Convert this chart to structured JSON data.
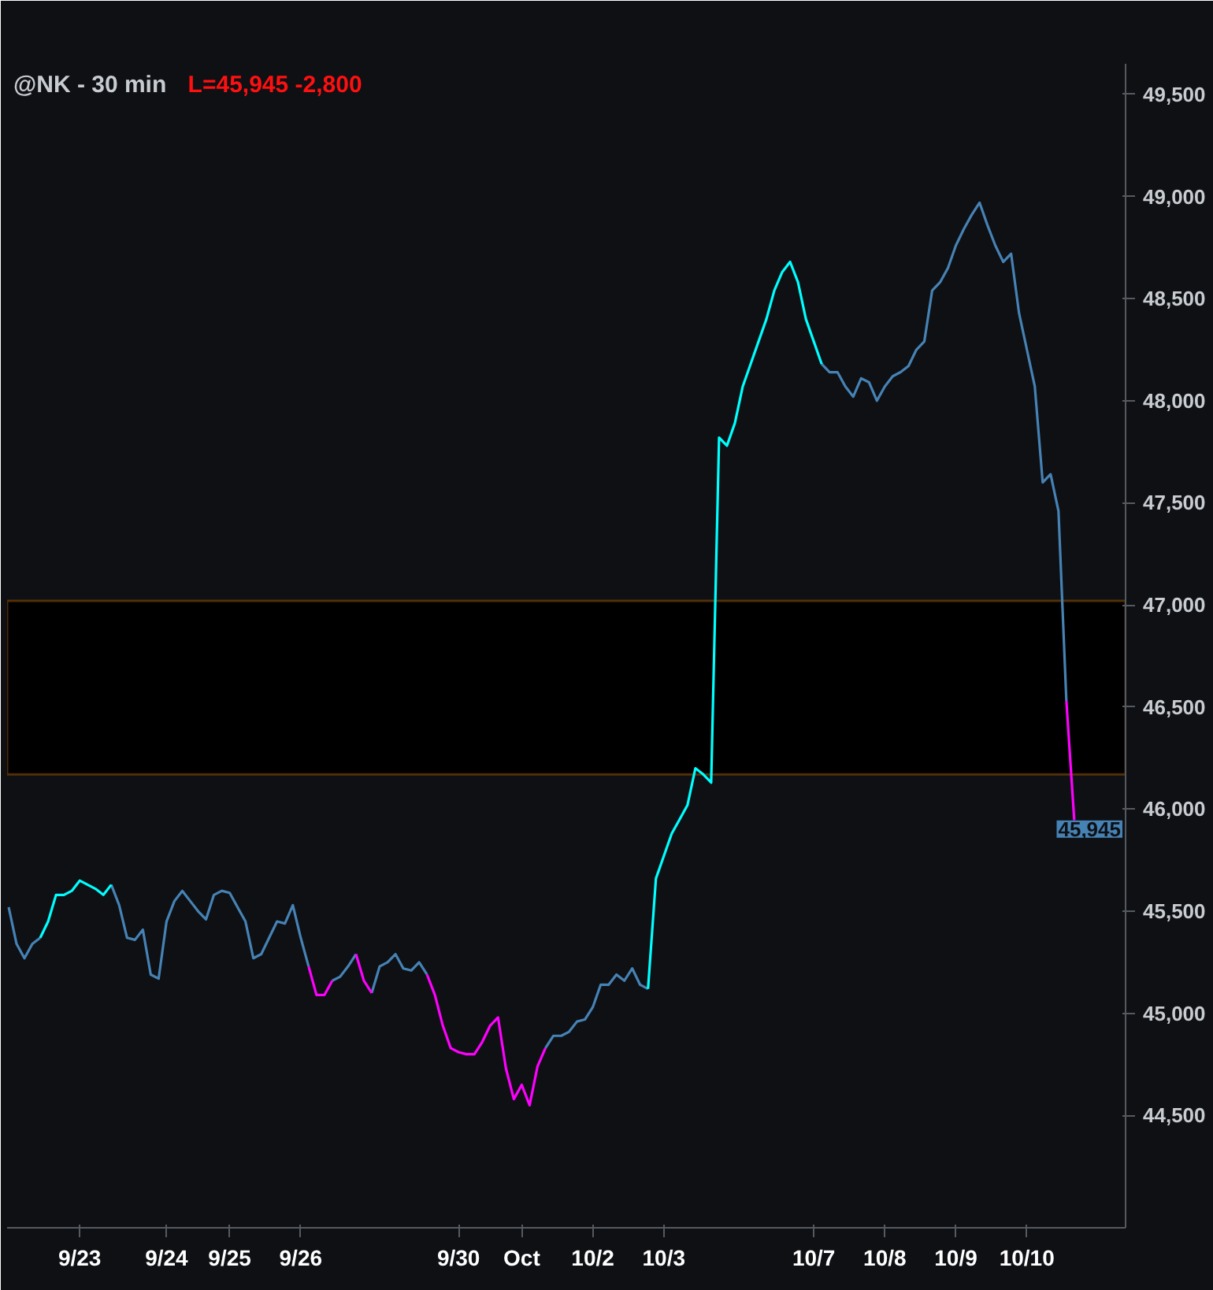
{
  "chart_data": {
    "type": "line",
    "title": "@NK - 30 min",
    "subtitle": "L=45,945  -2,800",
    "categories": [
      null,
      null,
      null,
      null,
      null,
      null,
      null,
      null,
      null,
      "9/23",
      null,
      null,
      null,
      null,
      null,
      null,
      null,
      null,
      null,
      null,
      "9/24",
      null,
      null,
      null,
      null,
      null,
      null,
      null,
      "9/25",
      null,
      null,
      null,
      null,
      null,
      null,
      null,
      null,
      "9/26",
      null,
      null,
      null,
      null,
      null,
      null,
      null,
      null,
      null,
      null,
      null,
      null,
      null,
      null,
      null,
      null,
      null,
      null,
      null,
      "9/30",
      null,
      null,
      null,
      null,
      null,
      null,
      null,
      "Oct",
      null,
      null,
      null,
      null,
      null,
      null,
      null,
      null,
      "10/2",
      null,
      null,
      null,
      null,
      null,
      null,
      null,
      null,
      "10/3",
      null,
      null,
      null,
      null,
      null,
      null,
      null,
      null,
      null,
      null,
      null,
      null,
      null,
      null,
      null,
      null,
      null,
      null,
      "10/7",
      null,
      null,
      null,
      null,
      null,
      null,
      null,
      null,
      "10/8",
      null,
      null,
      null,
      null,
      null,
      null,
      null,
      null,
      "10/9",
      null,
      null,
      null,
      null,
      null,
      null,
      null,
      null,
      "10/10",
      null,
      null,
      null,
      null,
      null,
      null
    ],
    "series": [
      {
        "color": "#4682b4",
        "values": [
          45520,
          45340,
          45270,
          45340,
          45370,
          null,
          null,
          null,
          null,
          null,
          null,
          null,
          null,
          45630,
          45530,
          45370,
          45360,
          45410,
          45190,
          45170,
          45450,
          45550,
          45600,
          45550,
          45500,
          45460,
          45580,
          45600,
          45590,
          45520,
          45450,
          45270,
          45290,
          45370,
          45450,
          45440,
          45530,
          45370,
          45230,
          null,
          null,
          45160,
          45180,
          45230,
          45290,
          null,
          45100,
          45230,
          45250,
          45290,
          45220,
          45210,
          45250,
          45190,
          null,
          null,
          null,
          null,
          null,
          null,
          null,
          null,
          null,
          null,
          null,
          null,
          null,
          null,
          44830,
          44890,
          44890,
          44910,
          44960,
          44970,
          45030,
          45140,
          45140,
          45190,
          45160,
          45220,
          45140,
          45120,
          null,
          null,
          null,
          null,
          null,
          null,
          null,
          null,
          null,
          null,
          null,
          null,
          null,
          null,
          null,
          null,
          null,
          null,
          null,
          null,
          null,
          48180,
          48140,
          48140,
          48070,
          48020,
          48110,
          48090,
          48000,
          48070,
          48120,
          48140,
          48170,
          48250,
          48290,
          48540,
          48580,
          48650,
          48760,
          48840,
          48910,
          48970,
          48860,
          48760,
          48680,
          48720,
          48430,
          48250,
          48070,
          47600,
          47640,
          47460,
          46530,
          null
        ]
      },
      {
        "color": "#00ffff",
        "values": [
          null,
          null,
          null,
          null,
          45370,
          45450,
          45580,
          45580,
          45600,
          45650,
          45630,
          45610,
          45580,
          45630,
          null,
          null,
          null,
          null,
          null,
          null,
          null,
          null,
          null,
          null,
          null,
          null,
          null,
          null,
          null,
          null,
          null,
          null,
          null,
          null,
          null,
          null,
          null,
          null,
          null,
          null,
          null,
          null,
          null,
          null,
          null,
          null,
          null,
          null,
          null,
          null,
          null,
          null,
          null,
          null,
          null,
          null,
          null,
          null,
          null,
          null,
          null,
          null,
          null,
          null,
          null,
          null,
          null,
          null,
          null,
          null,
          null,
          null,
          null,
          null,
          null,
          null,
          null,
          null,
          null,
          null,
          null,
          45120,
          45660,
          45770,
          45880,
          45950,
          46020,
          46200,
          46170,
          46130,
          47820,
          47780,
          47890,
          48070,
          48180,
          48290,
          48400,
          48540,
          48630,
          48680,
          48580,
          48400,
          48290,
          48180,
          null,
          null,
          null,
          null,
          null,
          null,
          null,
          null,
          null,
          null,
          null,
          null,
          null,
          null,
          null,
          null,
          null,
          null,
          null,
          null,
          null,
          null,
          null,
          null,
          null,
          null,
          null,
          null,
          null,
          null,
          null,
          null
        ]
      },
      {
        "color": "#ff00ff",
        "values": [
          null,
          null,
          null,
          null,
          null,
          null,
          null,
          null,
          null,
          null,
          null,
          null,
          null,
          null,
          null,
          null,
          null,
          null,
          null,
          null,
          null,
          null,
          null,
          null,
          null,
          null,
          null,
          null,
          null,
          null,
          null,
          null,
          null,
          null,
          null,
          null,
          null,
          null,
          45230,
          45090,
          45090,
          45160,
          null,
          null,
          45290,
          45160,
          45100,
          null,
          null,
          null,
          null,
          null,
          null,
          45190,
          45090,
          44940,
          44830,
          44810,
          44800,
          44800,
          44860,
          44940,
          44980,
          44730,
          44580,
          44650,
          44550,
          44740,
          44830,
          null,
          null,
          null,
          null,
          null,
          null,
          null,
          null,
          null,
          null,
          null,
          null,
          null,
          null,
          null,
          null,
          null,
          null,
          null,
          null,
          null,
          null,
          null,
          null,
          null,
          null,
          null,
          null,
          null,
          null,
          null,
          null,
          null,
          null,
          null,
          null,
          null,
          null,
          null,
          null,
          null,
          null,
          null,
          null,
          null,
          null,
          null,
          null,
          null,
          null,
          null,
          null,
          null,
          null,
          null,
          null,
          null,
          null,
          null,
          null,
          null,
          null,
          null,
          null,
          null,
          46530,
          45945
        ]
      }
    ],
    "ylim": [
      43950,
      49650
    ],
    "yticks": [
      {
        "value": 44500,
        "label": "44,500"
      },
      {
        "value": 45000,
        "label": "45,000"
      },
      {
        "value": 45500,
        "label": "45,500"
      },
      {
        "value": 46000,
        "label": "46,000"
      },
      {
        "value": 46500,
        "label": "46,500"
      },
      {
        "value": 47000,
        "label": "47,000"
      },
      {
        "value": 47500,
        "label": "47,500"
      },
      {
        "value": 48000,
        "label": "48,000"
      },
      {
        "value": 48500,
        "label": "48,500"
      },
      {
        "value": 49000,
        "label": "49,000"
      },
      {
        "value": 49500,
        "label": "49,500"
      }
    ],
    "bands": [
      {
        "axis": "y",
        "from": 46170,
        "to": 47020,
        "color": "#ff8c00"
      }
    ],
    "annotations": [
      "45,945"
    ],
    "grid": false
  }
}
